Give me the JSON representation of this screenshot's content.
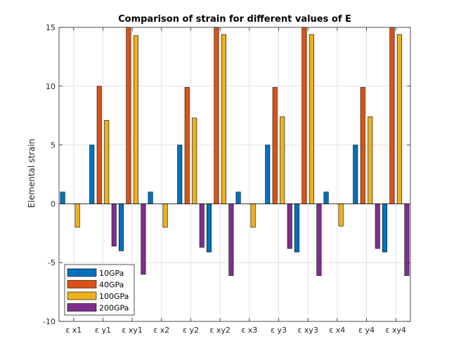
{
  "chart_data": {
    "type": "bar",
    "title": "Comparison of strain for different values of E",
    "xlabel": "",
    "ylabel": "Elemental strain",
    "ylim": [
      -10,
      15
    ],
    "yticks": [
      -10,
      -5,
      0,
      5,
      10,
      15
    ],
    "grid": true,
    "legend_position": "bottom-left",
    "categories": [
      "ε x1",
      "ε y1",
      "ε xy1",
      "ε x2",
      "ε y2",
      "ε xy2",
      "ε x3",
      "ε y3",
      "ε xy3",
      "ε x4",
      "ε y4",
      "ε xy4"
    ],
    "series": [
      {
        "name": "10GPa",
        "color": "#0072BD",
        "values": [
          1,
          5,
          -4,
          1,
          5,
          -4.1,
          1,
          5,
          -4.1,
          1,
          5,
          -4.1
        ]
      },
      {
        "name": "40GPa",
        "color": "#D95319",
        "values": [
          0,
          10,
          15,
          0,
          9.9,
          15,
          0,
          9.9,
          15,
          0,
          9.9,
          15
        ]
      },
      {
        "name": "100GPa",
        "color": "#EDB120",
        "values": [
          -2,
          7.1,
          14.3,
          -2,
          7.3,
          14.4,
          -2,
          7.4,
          14.4,
          -1.9,
          7.4,
          14.4
        ]
      },
      {
        "name": "200GPa",
        "color": "#7E2F8E",
        "values": [
          0,
          -3.6,
          -6,
          0,
          -3.7,
          -6.1,
          0,
          -3.8,
          -6.1,
          0,
          -3.8,
          -6.1
        ]
      }
    ]
  }
}
